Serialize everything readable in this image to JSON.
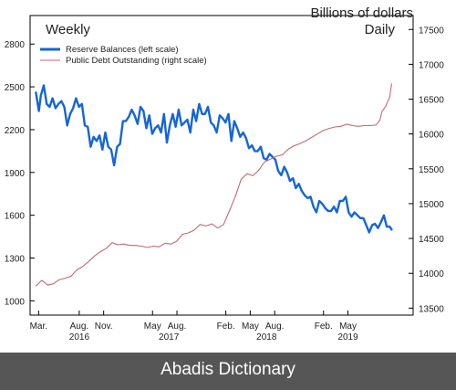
{
  "chart_data": {
    "type": "line",
    "title_left": "Weekly",
    "title_right_line1": "Billions of dollars",
    "title_right_line2": "Daily",
    "left_axis": {
      "range": [
        900,
        3000
      ],
      "ticks": [
        1000,
        1300,
        1600,
        1900,
        2200,
        2500,
        2800
      ]
    },
    "right_axis": {
      "range": [
        13400,
        17700
      ],
      "ticks": [
        13500,
        14000,
        14500,
        15000,
        15500,
        16000,
        16500,
        17000,
        17500
      ]
    },
    "x_range": [
      2016.08,
      2020.0
    ],
    "x_month_ticks": [
      {
        "x": 2016.167,
        "label": "Mar."
      },
      {
        "x": 2016.583,
        "label": "Aug."
      },
      {
        "x": 2016.833,
        "label": "Nov."
      },
      {
        "x": 2017.333,
        "label": "May"
      },
      {
        "x": 2017.583,
        "label": "Aug."
      },
      {
        "x": 2018.083,
        "label": "Feb."
      },
      {
        "x": 2018.333,
        "label": "May"
      },
      {
        "x": 2018.583,
        "label": "Aug."
      },
      {
        "x": 2019.083,
        "label": "Feb."
      },
      {
        "x": 2019.333,
        "label": "May"
      }
    ],
    "x_year_ticks": [
      {
        "x": 2016.583,
        "label": "2016"
      },
      {
        "x": 2017.5,
        "label": "2017"
      },
      {
        "x": 2018.5,
        "label": "2018"
      },
      {
        "x": 2019.333,
        "label": "2019"
      }
    ],
    "legend_placement": "top-left",
    "grid": false,
    "series": [
      {
        "name": "Reserve Balances (left scale)",
        "axis": "left",
        "color": "#1565d8",
        "x": [
          2016.14,
          2016.17,
          2016.19,
          2016.22,
          2016.25,
          2016.28,
          2016.31,
          2016.34,
          2016.37,
          2016.4,
          2016.43,
          2016.46,
          2016.49,
          2016.52,
          2016.55,
          2016.58,
          2016.61,
          2016.64,
          2016.67,
          2016.7,
          2016.73,
          2016.76,
          2016.79,
          2016.82,
          2016.85,
          2016.88,
          2016.91,
          2016.94,
          2016.97,
          2017.0,
          2017.03,
          2017.06,
          2017.09,
          2017.12,
          2017.15,
          2017.18,
          2017.21,
          2017.24,
          2017.27,
          2017.3,
          2017.33,
          2017.36,
          2017.39,
          2017.42,
          2017.45,
          2017.48,
          2017.51,
          2017.54,
          2017.57,
          2017.6,
          2017.63,
          2017.66,
          2017.69,
          2017.72,
          2017.75,
          2017.78,
          2017.81,
          2017.84,
          2017.87,
          2017.9,
          2017.93,
          2017.96,
          2017.99,
          2018.02,
          2018.05,
          2018.08,
          2018.11,
          2018.14,
          2018.17,
          2018.2,
          2018.23,
          2018.26,
          2018.29,
          2018.32,
          2018.35,
          2018.38,
          2018.41,
          2018.44,
          2018.47,
          2018.5,
          2018.53,
          2018.56,
          2018.59,
          2018.62,
          2018.65,
          2018.68,
          2018.71,
          2018.74,
          2018.77,
          2018.8,
          2018.83,
          2018.86,
          2018.89,
          2018.92,
          2018.95,
          2018.98,
          2019.01,
          2019.04,
          2019.07,
          2019.1,
          2019.13,
          2019.16,
          2019.19,
          2019.22,
          2019.25,
          2019.28,
          2019.31,
          2019.34,
          2019.37,
          2019.4,
          2019.43,
          2019.46,
          2019.49,
          2019.52,
          2019.55,
          2019.58,
          2019.61,
          2019.64,
          2019.67,
          2019.7,
          2019.73,
          2019.76,
          2019.78
        ],
        "y": [
          2460,
          2330,
          2440,
          2510,
          2380,
          2360,
          2420,
          2350,
          2380,
          2400,
          2360,
          2230,
          2310,
          2350,
          2420,
          2360,
          2380,
          2230,
          2220,
          2080,
          2150,
          2120,
          2160,
          2060,
          2180,
          2080,
          2060,
          1950,
          2080,
          2100,
          2260,
          2260,
          2290,
          2340,
          2300,
          2240,
          2360,
          2330,
          2210,
          2300,
          2170,
          2210,
          2230,
          2180,
          2310,
          2110,
          2230,
          2310,
          2220,
          2340,
          2230,
          2250,
          2270,
          2180,
          2340,
          2260,
          2380,
          2310,
          2310,
          2360,
          2250,
          2230,
          2180,
          2300,
          2280,
          2250,
          2310,
          2120,
          2260,
          2210,
          2150,
          2180,
          2140,
          2070,
          2090,
          2050,
          2050,
          2080,
          2000,
          1990,
          2030,
          2010,
          1990,
          1910,
          1880,
          1940,
          1900,
          1840,
          1860,
          1790,
          1820,
          1770,
          1740,
          1720,
          1730,
          1660,
          1620,
          1700,
          1680,
          1650,
          1630,
          1630,
          1660,
          1620,
          1700,
          1700,
          1730,
          1620,
          1590,
          1620,
          1600,
          1580,
          1580,
          1530,
          1480,
          1530,
          1540,
          1510,
          1550,
          1600,
          1520,
          1520,
          1500
        ]
      },
      {
        "name": "Public Debt Outstanding (right scale)",
        "axis": "right",
        "color": "#c46a72",
        "x": [
          2016.14,
          2016.2,
          2016.26,
          2016.32,
          2016.38,
          2016.44,
          2016.5,
          2016.56,
          2016.62,
          2016.68,
          2016.74,
          2016.8,
          2016.86,
          2016.92,
          2016.98,
          2017.04,
          2017.1,
          2017.16,
          2017.22,
          2017.28,
          2017.34,
          2017.4,
          2017.46,
          2017.52,
          2017.58,
          2017.64,
          2017.7,
          2017.76,
          2017.82,
          2017.88,
          2017.94,
          2018.0,
          2018.06,
          2018.12,
          2018.18,
          2018.24,
          2018.3,
          2018.36,
          2018.42,
          2018.48,
          2018.54,
          2018.6,
          2018.66,
          2018.72,
          2018.78,
          2018.84,
          2018.9,
          2018.96,
          2019.02,
          2019.08,
          2019.14,
          2019.2,
          2019.26,
          2019.32,
          2019.38,
          2019.44,
          2019.5,
          2019.56,
          2019.62,
          2019.66,
          2019.68,
          2019.72,
          2019.76,
          2019.78
        ],
        "y": [
          13820,
          13900,
          13830,
          13850,
          13910,
          13930,
          13960,
          14050,
          14100,
          14170,
          14250,
          14310,
          14360,
          14440,
          14410,
          14420,
          14400,
          14400,
          14390,
          14370,
          14390,
          14380,
          14430,
          14420,
          14460,
          14560,
          14580,
          14620,
          14700,
          14680,
          14710,
          14650,
          14700,
          14900,
          15100,
          15350,
          15430,
          15400,
          15480,
          15600,
          15640,
          15680,
          15700,
          15780,
          15830,
          15860,
          15900,
          15950,
          16000,
          16050,
          16080,
          16100,
          16110,
          16140,
          16120,
          16110,
          16120,
          16120,
          16130,
          16200,
          16320,
          16400,
          16530,
          16720
        ]
      }
    ]
  },
  "footer": {
    "text": "Abadis Dictionary"
  }
}
